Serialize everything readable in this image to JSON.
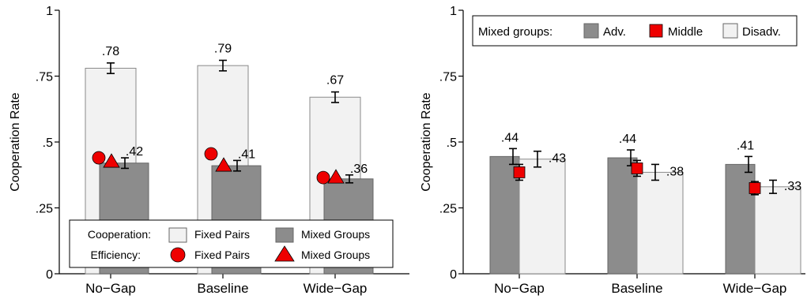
{
  "chart_data": [
    {
      "type": "bar",
      "categories": [
        "No−Gap",
        "Baseline",
        "Wide−Gap"
      ],
      "ylabel": "Cooperation Rate",
      "ylim": [
        0,
        1
      ],
      "yticks": [
        0,
        0.25,
        0.5,
        0.75,
        1
      ],
      "ytick_labels": [
        "0",
        ".25",
        ".5",
        ".75",
        "1"
      ],
      "colors": {
        "fixed_pairs": "#f2f2f2",
        "mixed_groups": "#8c8c8c",
        "markers": "#ee0000"
      },
      "series": [
        {
          "name": "Fixed Pairs",
          "values": [
            0.78,
            0.79,
            0.67
          ],
          "labels": [
            ".78",
            ".79",
            ".67"
          ],
          "ci": [
            0.02,
            0.02,
            0.02
          ]
        },
        {
          "name": "Mixed Groups",
          "values": [
            0.42,
            0.41,
            0.36
          ],
          "labels": [
            ".42",
            ".41",
            ".36"
          ],
          "ci": [
            0.02,
            0.02,
            0.015
          ]
        }
      ],
      "efficiency": [
        {
          "name": "Fixed Pairs",
          "marker": "circle",
          "values": [
            0.44,
            0.455,
            0.365
          ]
        },
        {
          "name": "Mixed Groups",
          "marker": "triangle",
          "values": [
            0.425,
            0.41,
            0.365
          ]
        }
      ],
      "legend": {
        "position": "bottom",
        "cooperation_label": "Cooperation:",
        "efficiency_label": "Efficiency:",
        "items": [
          "Fixed Pairs",
          "Mixed Groups",
          "Fixed Pairs",
          "Mixed Groups"
        ]
      }
    },
    {
      "type": "bar",
      "categories": [
        "No−Gap",
        "Baseline",
        "Wide−Gap"
      ],
      "ylabel": "Cooperation Rate",
      "ylim": [
        0,
        1
      ],
      "yticks": [
        0,
        0.25,
        0.5,
        0.75,
        1
      ],
      "ytick_labels": [
        "0",
        ".25",
        ".5",
        ".75",
        "1"
      ],
      "colors": {
        "adv": "#8c8c8c",
        "middle": "#ee0000",
        "disadv": "#f2f2f2"
      },
      "series": [
        {
          "name": "Adv.",
          "values": [
            0.445,
            0.44,
            0.415
          ],
          "labels": [
            ".44",
            ".44",
            ".41"
          ],
          "ci": [
            0.03,
            0.03,
            0.03
          ]
        },
        {
          "name": "Middle",
          "values": [
            0.385,
            0.4,
            0.325
          ],
          "ci": [
            0.03,
            0.03,
            0.025
          ]
        },
        {
          "name": "Disadv.",
          "values": [
            0.435,
            0.385,
            0.33
          ],
          "labels": [
            ".43",
            ".38",
            ".33"
          ],
          "ci": [
            0.03,
            0.03,
            0.025
          ]
        }
      ],
      "legend": {
        "position": "top",
        "title": "Mixed groups:",
        "items": [
          "Adv.",
          "Middle",
          "Disadv."
        ]
      }
    }
  ]
}
